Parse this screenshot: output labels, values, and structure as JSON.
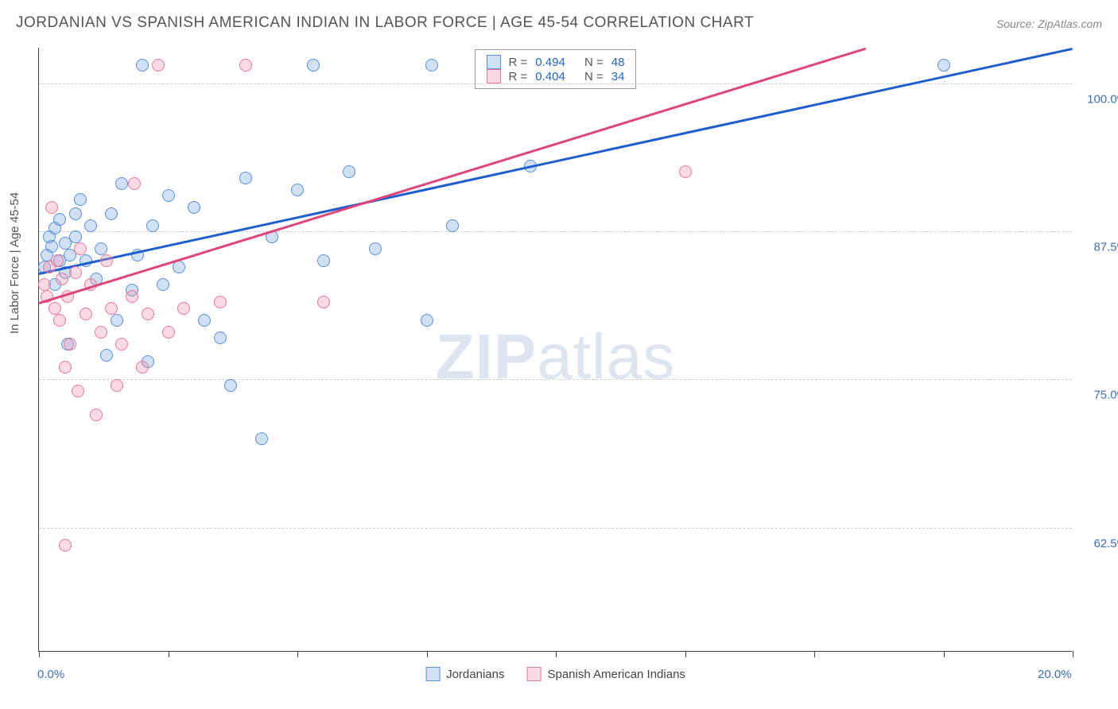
{
  "title": "JORDANIAN VS SPANISH AMERICAN INDIAN IN LABOR FORCE | AGE 45-54 CORRELATION CHART",
  "source": "Source: ZipAtlas.com",
  "ylabel": "In Labor Force | Age 45-54",
  "watermark_bold": "ZIP",
  "watermark_rest": "atlas",
  "chart": {
    "type": "scatter",
    "xlim": [
      0,
      20
    ],
    "ylim": [
      52,
      103
    ],
    "xticks": [
      0,
      2.5,
      5,
      7.5,
      10,
      12.5,
      15,
      17.5,
      20
    ],
    "yticks": [
      62.5,
      75,
      87.5,
      100
    ],
    "xtick_labels": {
      "0": "0.0%",
      "20": "20.0%"
    },
    "ytick_labels": {
      "62.5": "62.5%",
      "75": "75.0%",
      "87.5": "87.5%",
      "100": "100.0%"
    },
    "background_color": "#ffffff",
    "grid_color": "#cccccc",
    "axis_color": "#444444",
    "tick_label_color": "#3b6fb6",
    "marker_radius": 8,
    "marker_stroke_width": 1.5,
    "series": [
      {
        "name": "Jordanians",
        "fill": "rgba(120,170,230,0.35)",
        "stroke": "#5a8fd6",
        "trend_color": "#1f5ecf",
        "trend": {
          "x1": 0,
          "y1": 84,
          "x2": 20,
          "y2": 103
        },
        "R": "0.494",
        "N": "48",
        "points": [
          [
            0.1,
            84.5
          ],
          [
            0.15,
            85.5
          ],
          [
            0.2,
            87
          ],
          [
            0.25,
            86.2
          ],
          [
            0.3,
            83
          ],
          [
            0.3,
            87.8
          ],
          [
            0.4,
            85
          ],
          [
            0.4,
            88.5
          ],
          [
            0.5,
            84
          ],
          [
            0.5,
            86.5
          ],
          [
            0.55,
            78
          ],
          [
            0.6,
            85.5
          ],
          [
            0.7,
            87
          ],
          [
            0.7,
            89
          ],
          [
            0.8,
            90.2
          ],
          [
            0.9,
            85
          ],
          [
            1.0,
            88
          ],
          [
            1.1,
            83.5
          ],
          [
            1.2,
            86
          ],
          [
            1.3,
            77
          ],
          [
            1.4,
            89
          ],
          [
            1.5,
            80
          ],
          [
            1.6,
            91.5
          ],
          [
            1.8,
            82.5
          ],
          [
            1.9,
            85.5
          ],
          [
            2.0,
            101.5
          ],
          [
            2.1,
            76.5
          ],
          [
            2.2,
            88
          ],
          [
            2.4,
            83
          ],
          [
            2.5,
            90.5
          ],
          [
            2.7,
            84.5
          ],
          [
            3.0,
            89.5
          ],
          [
            3.2,
            80
          ],
          [
            3.5,
            78.5
          ],
          [
            3.7,
            74.5
          ],
          [
            4.0,
            92
          ],
          [
            4.3,
            70
          ],
          [
            4.5,
            87
          ],
          [
            5.0,
            91
          ],
          [
            5.3,
            101.5
          ],
          [
            5.5,
            85
          ],
          [
            6.0,
            92.5
          ],
          [
            6.5,
            86
          ],
          [
            7.5,
            80
          ],
          [
            7.6,
            101.5
          ],
          [
            8.0,
            88
          ],
          [
            9.5,
            93
          ],
          [
            17.5,
            101.5
          ]
        ]
      },
      {
        "name": "Spanish American Indians",
        "fill": "rgba(240,150,175,0.35)",
        "stroke": "#e57a9a",
        "trend_color": "#e0457a",
        "trend": {
          "x1": 0,
          "y1": 81.5,
          "x2": 16,
          "y2": 103
        },
        "R": "0.404",
        "N": "34",
        "points": [
          [
            0.1,
            83
          ],
          [
            0.15,
            82
          ],
          [
            0.2,
            84.5
          ],
          [
            0.25,
            89.5
          ],
          [
            0.3,
            81
          ],
          [
            0.35,
            85
          ],
          [
            0.4,
            80
          ],
          [
            0.45,
            83.5
          ],
          [
            0.5,
            76
          ],
          [
            0.55,
            82
          ],
          [
            0.6,
            78
          ],
          [
            0.7,
            84
          ],
          [
            0.75,
            74
          ],
          [
            0.8,
            86
          ],
          [
            0.9,
            80.5
          ],
          [
            1.0,
            83
          ],
          [
            1.1,
            72
          ],
          [
            1.2,
            79
          ],
          [
            1.3,
            85
          ],
          [
            1.4,
            81
          ],
          [
            1.5,
            74.5
          ],
          [
            1.6,
            78
          ],
          [
            1.8,
            82
          ],
          [
            1.85,
            91.5
          ],
          [
            2.0,
            76
          ],
          [
            2.1,
            80.5
          ],
          [
            2.3,
            101.5
          ],
          [
            2.5,
            79
          ],
          [
            2.8,
            81
          ],
          [
            3.5,
            81.5
          ],
          [
            4.0,
            101.5
          ],
          [
            5.5,
            81.5
          ],
          [
            0.5,
            61
          ],
          [
            12.5,
            92.5
          ]
        ]
      }
    ]
  },
  "legend_top": {
    "rows": [
      {
        "swatch_fill": "rgba(120,170,230,0.35)",
        "swatch_stroke": "#5a8fd6",
        "R_label": "R =",
        "R": "0.494",
        "N_label": "N =",
        "N": "48"
      },
      {
        "swatch_fill": "rgba(240,150,175,0.35)",
        "swatch_stroke": "#e57a9a",
        "R_label": "R =",
        "R": "0.404",
        "N_label": "N =",
        "N": "34"
      }
    ]
  },
  "legend_bottom": {
    "items": [
      {
        "swatch_fill": "rgba(120,170,230,0.35)",
        "swatch_stroke": "#5a8fd6",
        "label": "Jordanians"
      },
      {
        "swatch_fill": "rgba(240,150,175,0.35)",
        "swatch_stroke": "#e57a9a",
        "label": "Spanish American Indians"
      }
    ]
  }
}
